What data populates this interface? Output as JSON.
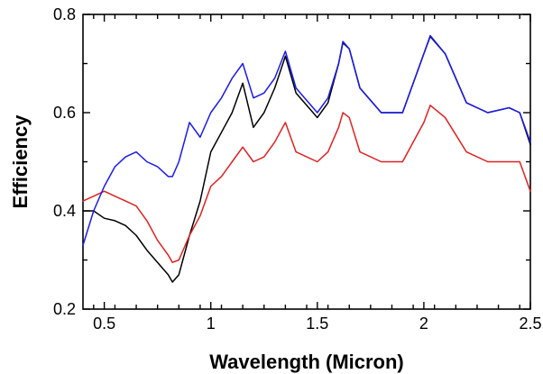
{
  "chart_data": {
    "type": "line",
    "xlabel": "Wavelength (Micron)",
    "ylabel": "Efficiency",
    "xlim": [
      0.4,
      2.5
    ],
    "ylim": [
      0.2,
      0.8
    ],
    "x_ticks": [
      0.5,
      1,
      1.5,
      2,
      2.5
    ],
    "x_tick_labels": [
      "0.5",
      "1",
      "1.5",
      "2",
      "2.5"
    ],
    "y_ticks": [
      0.2,
      0.4,
      0.6,
      0.8
    ],
    "y_tick_labels": [
      "0.2",
      "0.4",
      "0.6",
      "0.8"
    ],
    "grid": false,
    "series": [
      {
        "color": "#000000",
        "x": [
          0.4,
          0.45,
          0.5,
          0.55,
          0.6,
          0.65,
          0.7,
          0.75,
          0.8,
          0.82,
          0.85,
          0.9,
          0.95,
          1.0,
          1.05,
          1.1,
          1.15,
          1.2,
          1.25,
          1.3,
          1.35,
          1.4,
          1.5,
          1.55,
          1.6,
          1.62,
          1.65,
          1.7,
          1.8,
          1.9,
          2.0,
          2.03,
          2.1,
          2.2,
          2.3,
          2.4,
          2.45,
          2.5
        ],
        "y": [
          0.4,
          0.4,
          0.385,
          0.38,
          0.37,
          0.35,
          0.32,
          0.295,
          0.27,
          0.255,
          0.27,
          0.35,
          0.42,
          0.52,
          0.56,
          0.6,
          0.66,
          0.57,
          0.6,
          0.65,
          0.715,
          0.64,
          0.59,
          0.62,
          0.7,
          0.742,
          0.73,
          0.65,
          0.6,
          0.6,
          0.72,
          0.755,
          0.72,
          0.62,
          0.6,
          0.61,
          0.6,
          0.535
        ]
      },
      {
        "color": "#e02020",
        "x": [
          0.4,
          0.45,
          0.5,
          0.55,
          0.6,
          0.65,
          0.7,
          0.75,
          0.8,
          0.82,
          0.85,
          0.9,
          0.95,
          1.0,
          1.05,
          1.1,
          1.15,
          1.2,
          1.25,
          1.3,
          1.35,
          1.4,
          1.5,
          1.55,
          1.6,
          1.62,
          1.65,
          1.7,
          1.8,
          1.9,
          2.0,
          2.03,
          2.1,
          2.2,
          2.3,
          2.4,
          2.45,
          2.5
        ],
        "y": [
          0.42,
          0.43,
          0.44,
          0.43,
          0.42,
          0.41,
          0.38,
          0.34,
          0.31,
          0.295,
          0.3,
          0.35,
          0.39,
          0.45,
          0.47,
          0.5,
          0.53,
          0.5,
          0.51,
          0.54,
          0.58,
          0.52,
          0.5,
          0.52,
          0.57,
          0.6,
          0.59,
          0.52,
          0.5,
          0.5,
          0.58,
          0.615,
          0.59,
          0.52,
          0.5,
          0.5,
          0.5,
          0.44
        ]
      },
      {
        "color": "#1a1aee",
        "x": [
          0.4,
          0.45,
          0.5,
          0.55,
          0.6,
          0.65,
          0.7,
          0.75,
          0.8,
          0.82,
          0.85,
          0.9,
          0.95,
          1.0,
          1.05,
          1.1,
          1.15,
          1.2,
          1.25,
          1.3,
          1.35,
          1.4,
          1.5,
          1.55,
          1.6,
          1.62,
          1.65,
          1.7,
          1.8,
          1.9,
          2.0,
          2.03,
          2.1,
          2.2,
          2.3,
          2.4,
          2.45,
          2.5
        ],
        "y": [
          0.33,
          0.4,
          0.45,
          0.49,
          0.51,
          0.52,
          0.5,
          0.49,
          0.47,
          0.47,
          0.5,
          0.58,
          0.55,
          0.6,
          0.63,
          0.67,
          0.7,
          0.63,
          0.64,
          0.67,
          0.725,
          0.65,
          0.6,
          0.63,
          0.7,
          0.745,
          0.73,
          0.65,
          0.6,
          0.6,
          0.72,
          0.757,
          0.72,
          0.62,
          0.6,
          0.61,
          0.6,
          0.54
        ]
      }
    ]
  }
}
